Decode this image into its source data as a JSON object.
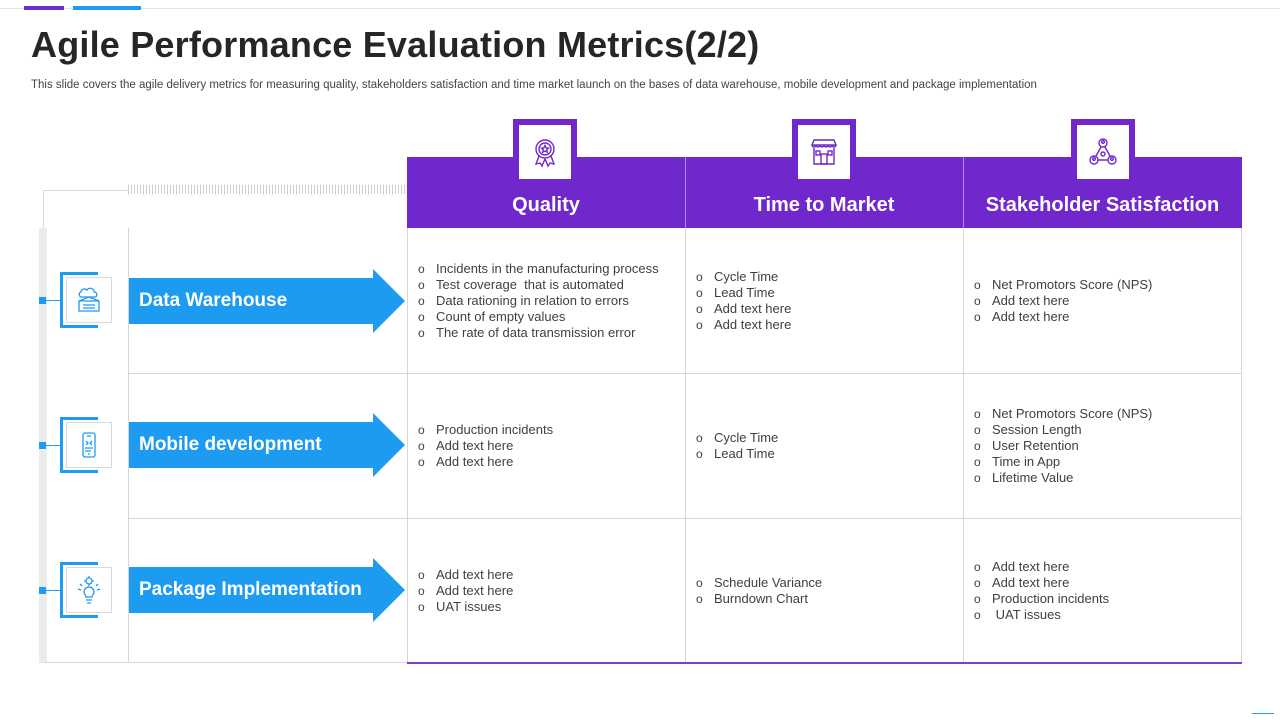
{
  "title": "Agile Performance Evaluation Metrics(2/2)",
  "subtitle": "This slide covers the agile delivery metrics for measuring quality, stakeholders satisfaction and time market launch on the bases of data warehouse, mobile development and package implementation",
  "columns": [
    {
      "label": "Quality",
      "icon": "award-ribbon-icon"
    },
    {
      "label": "Time to Market",
      "icon": "storefront-icon"
    },
    {
      "label": "Stakeholder Satisfaction",
      "icon": "people-network-icon"
    }
  ],
  "rows": [
    {
      "label": "Data Warehouse",
      "icon": "data-warehouse-icon",
      "cells": [
        [
          "Incidents in the manufacturing process",
          "Test coverage  that is automated",
          "Data rationing in relation to errors",
          "Count of empty values",
          "The rate of data transmission error"
        ],
        [
          "Cycle Time",
          "Lead Time",
          "Add text here",
          "Add text here"
        ],
        [
          "Net Promotors Score (NPS)",
          "Add text here",
          "Add text here"
        ]
      ]
    },
    {
      "label": "Mobile development",
      "icon": "mobile-phone-icon",
      "cells": [
        [
          "Production incidents",
          "Add text here",
          "Add text here"
        ],
        [
          "Cycle Time",
          "Lead Time"
        ],
        [
          "Net Promotors Score (NPS)",
          "Session Length",
          "User Retention",
          "Time in App",
          "Lifetime Value"
        ]
      ]
    },
    {
      "label": "Package Implementation",
      "icon": "lightbulb-gear-icon",
      "cells": [
        [
          "Add text here",
          "Add text here",
          "UAT issues"
        ],
        [
          "Schedule Variance",
          "Burndown Chart"
        ],
        [
          "Add text here",
          "Add text here",
          "Production incidents",
          " UAT issues"
        ]
      ]
    }
  ],
  "colors": {
    "purple": "#7027cb",
    "blue": "#1d9bf0"
  }
}
